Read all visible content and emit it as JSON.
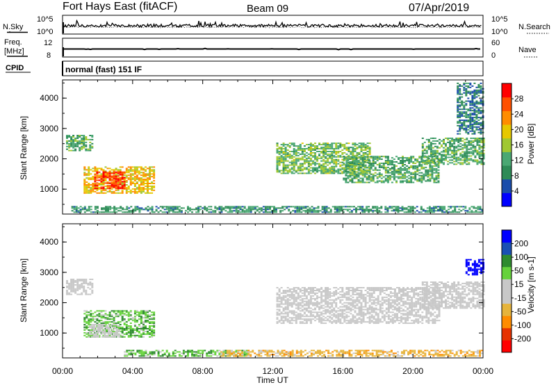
{
  "header": {
    "title": "Fort Hays East (fitACF)",
    "beam": "Beam 09",
    "date": "07/Apr/2019"
  },
  "side_labels": {
    "nsky": "N.Sky",
    "freq_line1": "Freq.",
    "freq_line2": "[MHz]",
    "cpid": "CPID",
    "nsearch": "N.Search",
    "nave": "Nave"
  },
  "cpid_text": "normal (fast) 151 IF",
  "noise_panel": {
    "left_ticks": [
      "10^5",
      "10^0"
    ],
    "right_ticks": [
      "10^5",
      "10^0"
    ]
  },
  "freq_panel": {
    "left_ticks": [
      "12",
      "8"
    ],
    "right_ticks": [
      "60",
      "0"
    ]
  },
  "colors": {
    "power_scale": [
      "#0000ff",
      "#1a4dab",
      "#2e8b57",
      "#4aa873",
      "#a0c832",
      "#e6c800",
      "#ff8c00",
      "#ff5000",
      "#ff0000"
    ],
    "velocity_scale": [
      "#ff0000",
      "#e63200",
      "#ff8c00",
      "#e6b43c",
      "#c8c8c8",
      "#c8c8c8",
      "#66d23c",
      "#2e8b2e",
      "#1a50b4",
      "#0000ff"
    ]
  },
  "chart_data": [
    {
      "type": "heatmap",
      "title": "",
      "xlabel": "Time UT",
      "ylabel": "Slant Range [km]",
      "colorbar_label": "Power [dB]",
      "colorbar_ticks": [
        "28",
        "24",
        "20",
        "16",
        "12",
        "8",
        "4"
      ],
      "colorbar_range": [
        0,
        32
      ],
      "x_ticks": [
        "00:00",
        "04:00",
        "08:00",
        "12:00",
        "16:00",
        "20:00",
        "00:00"
      ],
      "xlim": [
        0,
        24
      ],
      "y_ticks": [
        "4000",
        "3000",
        "2000",
        "1000"
      ],
      "ylim": [
        180,
        4600
      ],
      "regions": [
        {
          "t": [
            0.2,
            1.7
          ],
          "r": [
            2250,
            2750
          ],
          "value": 12
        },
        {
          "t": [
            1.2,
            5.2
          ],
          "r": [
            850,
            1750
          ],
          "value": 20
        },
        {
          "t": [
            1.8,
            3.6
          ],
          "r": [
            1000,
            1550
          ],
          "value": 28
        },
        {
          "t": [
            0.5,
            24.0
          ],
          "r": [
            220,
            420
          ],
          "value": 10
        },
        {
          "t": [
            12.2,
            17.5
          ],
          "r": [
            1500,
            2500
          ],
          "value": 14
        },
        {
          "t": [
            16.0,
            21.5
          ],
          "r": [
            1200,
            2100
          ],
          "value": 12
        },
        {
          "t": [
            20.5,
            24.0
          ],
          "r": [
            1800,
            2700
          ],
          "value": 12
        },
        {
          "t": [
            22.5,
            24.0
          ],
          "r": [
            2800,
            4500
          ],
          "value": 8
        }
      ]
    },
    {
      "type": "heatmap",
      "title": "",
      "xlabel": "Time UT",
      "ylabel": "Slant Range [km]",
      "colorbar_label": "Velocity [m s-1]",
      "colorbar_ticks": [
        "200",
        "100",
        "50",
        "15",
        "-15",
        "-50",
        "-100",
        "-200"
      ],
      "colorbar_range": [
        -250,
        250
      ],
      "x_ticks": [
        "00:00",
        "04:00",
        "08:00",
        "12:00",
        "16:00",
        "20:00",
        "00:00"
      ],
      "xlim": [
        0,
        24
      ],
      "y_ticks": [
        "4000",
        "3000",
        "2000",
        "1000"
      ],
      "ylim": [
        180,
        4600
      ],
      "regions": [
        {
          "t": [
            0.2,
            1.7
          ],
          "r": [
            2250,
            2750
          ],
          "value": 0
        },
        {
          "t": [
            1.2,
            5.2
          ],
          "r": [
            850,
            1750
          ],
          "value": 25
        },
        {
          "t": [
            1.5,
            3.2
          ],
          "r": [
            850,
            1300
          ],
          "value": 0
        },
        {
          "t": [
            3.5,
            10.5
          ],
          "r": [
            220,
            420
          ],
          "value": 25
        },
        {
          "t": [
            9.0,
            24.0
          ],
          "r": [
            220,
            420
          ],
          "value": -40
        },
        {
          "t": [
            12.2,
            21.5
          ],
          "r": [
            1300,
            2500
          ],
          "value": 0
        },
        {
          "t": [
            20.5,
            24.0
          ],
          "r": [
            1800,
            2700
          ],
          "value": 0
        },
        {
          "t": [
            23.0,
            24.0
          ],
          "r": [
            2900,
            3400
          ],
          "value": 220
        }
      ]
    }
  ]
}
